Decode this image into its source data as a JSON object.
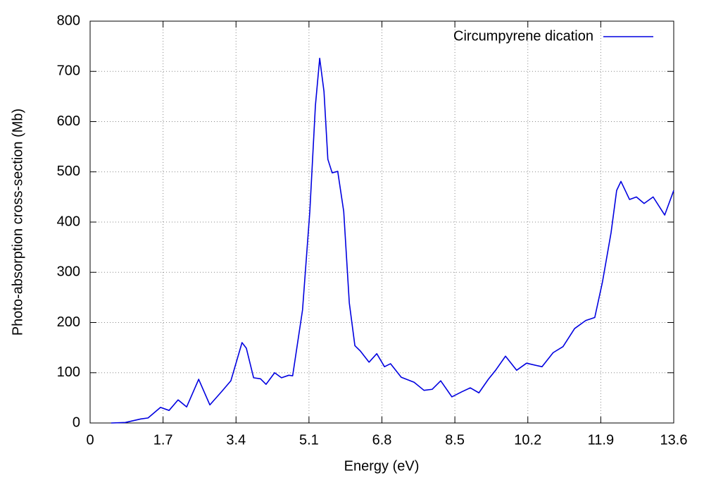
{
  "chart_data": {
    "type": "line",
    "x_label": "Energy (eV)",
    "y_label": "Photo-absorption cross-section (Mb)",
    "x": [
      0.49,
      0.82,
      1.18,
      1.35,
      1.64,
      1.84,
      2.05,
      2.25,
      2.53,
      2.79,
      3.07,
      3.28,
      3.54,
      3.64,
      3.81,
      3.97,
      4.1,
      4.3,
      4.46,
      4.63,
      4.72,
      4.95,
      5.12,
      5.25,
      5.35,
      5.45,
      5.54,
      5.64,
      5.77,
      5.91,
      6.04,
      6.17,
      6.3,
      6.5,
      6.68,
      6.86,
      7.0,
      7.25,
      7.55,
      7.78,
      7.97,
      8.17,
      8.43,
      8.66,
      8.86,
      9.06,
      9.28,
      9.45,
      9.68,
      9.94,
      10.17,
      10.53,
      10.79,
      11.02,
      11.29,
      11.55,
      11.76,
      11.94,
      12.14,
      12.27,
      12.37,
      12.57,
      12.73,
      12.91,
      13.12,
      13.39,
      13.6
    ],
    "series": [
      {
        "name": "Circumpyrene dication",
        "color": "#0000e0",
        "values": [
          0,
          1,
          8,
          10,
          31,
          25,
          46,
          32,
          87,
          36,
          63,
          84,
          160,
          149,
          90,
          88,
          77,
          100,
          90,
          95,
          94,
          225,
          421,
          632,
          726,
          660,
          525,
          498,
          501,
          421,
          239,
          154,
          143,
          121,
          138,
          112,
          118,
          91,
          81,
          65,
          67,
          84,
          52,
          62,
          70,
          60,
          87,
          105,
          133,
          105,
          119,
          112,
          140,
          152,
          188,
          204,
          210,
          281,
          379,
          463,
          481,
          445,
          450,
          437,
          450,
          414,
          463
        ]
      }
    ],
    "xlim": [
      0,
      13.6
    ],
    "ylim": [
      0,
      800
    ],
    "xticks": [
      0,
      1.7,
      3.4,
      5.1,
      6.8,
      8.5,
      10.2,
      11.9,
      13.6
    ],
    "yticks": [
      0,
      100,
      200,
      300,
      400,
      500,
      600,
      700,
      800
    ],
    "grid": true,
    "legend": "top-right"
  }
}
